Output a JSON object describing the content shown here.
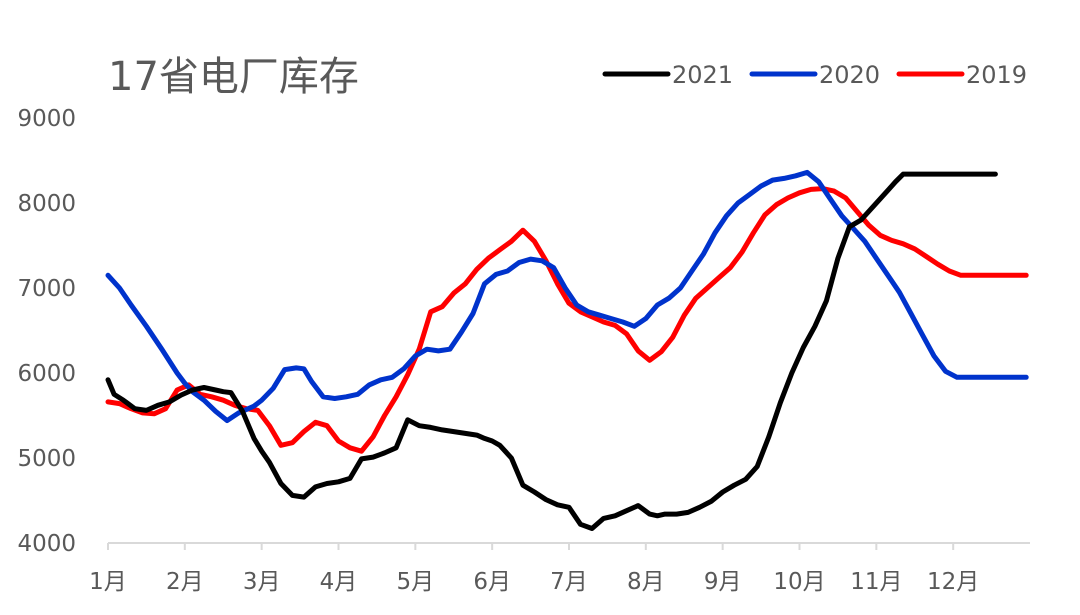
{
  "chart_data": {
    "type": "line",
    "title": "17省电厂库存",
    "xlabel": "",
    "ylabel": "",
    "ylim": [
      4000,
      9000
    ],
    "xlim": [
      0,
      12
    ],
    "y_ticks": [
      "9000",
      "8000",
      "7000",
      "6000",
      "5000",
      "4000"
    ],
    "y_tick_values": [
      9000,
      8000,
      7000,
      6000,
      5000,
      4000
    ],
    "x_ticks": [
      "1月",
      "2月",
      "3月",
      "4月",
      "5月",
      "6月",
      "7月",
      "8月",
      "9月",
      "10月",
      "11月",
      "12月"
    ],
    "legend_position": "top-right",
    "grid": false,
    "series": [
      {
        "name": "2021",
        "color": "#000000",
        "x": [
          0.0,
          0.08,
          0.2,
          0.35,
          0.5,
          0.65,
          0.8,
          0.95,
          1.1,
          1.25,
          1.4,
          1.5,
          1.6,
          1.75,
          1.9,
          2.0,
          2.1,
          2.25,
          2.4,
          2.55,
          2.7,
          2.85,
          3.0,
          3.15,
          3.3,
          3.45,
          3.6,
          3.75,
          3.9,
          4.05,
          4.2,
          4.35,
          4.5,
          4.65,
          4.8,
          4.9,
          5.0,
          5.1,
          5.25,
          5.4,
          5.55,
          5.7,
          5.85,
          6.0,
          6.15,
          6.3,
          6.45,
          6.6,
          6.75,
          6.9,
          7.05,
          7.15,
          7.25,
          7.4,
          7.55,
          7.7,
          7.85,
          8.0,
          8.15,
          8.3,
          8.45,
          8.6,
          8.75,
          8.9,
          9.05,
          9.2,
          9.35,
          9.5,
          9.65,
          9.8,
          9.95,
          10.05,
          10.15,
          10.25,
          10.35,
          10.45,
          10.55,
          10.65,
          10.75,
          10.85,
          10.95,
          11.05,
          11.15,
          11.25,
          11.35,
          11.45,
          11.55
        ],
        "values": [
          5920,
          5750,
          5680,
          5580,
          5560,
          5620,
          5660,
          5740,
          5800,
          5830,
          5800,
          5780,
          5770,
          5550,
          5230,
          5080,
          4950,
          4700,
          4560,
          4540,
          4660,
          4700,
          4720,
          4760,
          4990,
          5010,
          5060,
          5120,
          5450,
          5380,
          5360,
          5330,
          5310,
          5290,
          5270,
          5230,
          5200,
          5150,
          5000,
          4680,
          4600,
          4510,
          4450,
          4420,
          4220,
          4170,
          4290,
          4320,
          4380,
          4440,
          4340,
          4320,
          4340,
          4340,
          4360,
          4420,
          4490,
          4600,
          4680,
          4750,
          4900,
          5250,
          5650,
          6000,
          6300,
          6550,
          6850,
          7350,
          7720,
          7800,
          7950,
          8050,
          8150,
          8250,
          8340,
          8340,
          8340,
          8340,
          8340,
          8340,
          8340,
          8340,
          8340,
          8340,
          8340,
          8340,
          8340
        ]
      },
      {
        "name": "2020",
        "color": "#0033CC",
        "x": [
          0.0,
          0.15,
          0.3,
          0.5,
          0.7,
          0.9,
          1.0,
          1.1,
          1.25,
          1.4,
          1.55,
          1.7,
          1.8,
          1.9,
          2.0,
          2.15,
          2.3,
          2.45,
          2.55,
          2.65,
          2.8,
          2.95,
          3.1,
          3.25,
          3.4,
          3.55,
          3.7,
          3.85,
          4.0,
          4.15,
          4.3,
          4.45,
          4.6,
          4.75,
          4.9,
          5.05,
          5.2,
          5.35,
          5.5,
          5.65,
          5.8,
          5.95,
          6.1,
          6.25,
          6.4,
          6.55,
          6.7,
          6.85,
          7.0,
          7.15,
          7.3,
          7.45,
          7.6,
          7.75,
          7.9,
          8.05,
          8.2,
          8.35,
          8.5,
          8.65,
          8.8,
          8.95,
          9.1,
          9.25,
          9.4,
          9.55,
          9.7,
          9.85,
          10.0,
          10.15,
          10.3,
          10.45,
          10.6,
          10.75,
          10.9,
          11.05,
          11.2,
          11.35,
          11.5,
          11.65,
          11.8,
          11.95
        ],
        "values": [
          7150,
          7000,
          6800,
          6550,
          6280,
          6000,
          5880,
          5780,
          5680,
          5550,
          5440,
          5530,
          5570,
          5610,
          5680,
          5820,
          6040,
          6060,
          6050,
          5900,
          5720,
          5700,
          5720,
          5750,
          5860,
          5920,
          5950,
          6050,
          6200,
          6280,
          6260,
          6280,
          6480,
          6700,
          7050,
          7160,
          7200,
          7300,
          7340,
          7320,
          7240,
          7000,
          6800,
          6720,
          6680,
          6640,
          6600,
          6550,
          6640,
          6800,
          6880,
          7000,
          7200,
          7400,
          7650,
          7850,
          8000,
          8100,
          8200,
          8270,
          8290,
          8320,
          8360,
          8250,
          8050,
          7850,
          7700,
          7550,
          7350,
          7150,
          6950,
          6700,
          6450,
          6200,
          6020,
          5950,
          5950,
          5950,
          5950,
          5950,
          5950,
          5950
        ]
      },
      {
        "name": "2019",
        "color": "#FF0000",
        "x": [
          0.0,
          0.15,
          0.3,
          0.45,
          0.6,
          0.75,
          0.9,
          1.05,
          1.2,
          1.35,
          1.5,
          1.65,
          1.8,
          1.95,
          2.1,
          2.25,
          2.4,
          2.55,
          2.7,
          2.85,
          3.0,
          3.15,
          3.3,
          3.45,
          3.6,
          3.75,
          3.9,
          4.05,
          4.2,
          4.35,
          4.5,
          4.65,
          4.8,
          4.95,
          5.1,
          5.25,
          5.4,
          5.55,
          5.7,
          5.85,
          6.0,
          6.15,
          6.3,
          6.45,
          6.6,
          6.75,
          6.9,
          7.05,
          7.2,
          7.35,
          7.5,
          7.65,
          7.8,
          7.95,
          8.1,
          8.25,
          8.4,
          8.55,
          8.7,
          8.85,
          9.0,
          9.15,
          9.3,
          9.45,
          9.6,
          9.75,
          9.9,
          10.05,
          10.2,
          10.35,
          10.5,
          10.65,
          10.8,
          10.95,
          11.1,
          11.25,
          11.4,
          11.55,
          11.7,
          11.85,
          11.95
        ],
        "values": [
          5660,
          5640,
          5580,
          5530,
          5520,
          5580,
          5800,
          5860,
          5750,
          5720,
          5680,
          5620,
          5580,
          5560,
          5380,
          5150,
          5180,
          5310,
          5420,
          5380,
          5200,
          5120,
          5080,
          5250,
          5500,
          5720,
          5980,
          6280,
          6720,
          6780,
          6940,
          7050,
          7220,
          7350,
          7450,
          7550,
          7680,
          7550,
          7320,
          7050,
          6820,
          6720,
          6660,
          6600,
          6560,
          6460,
          6260,
          6150,
          6250,
          6420,
          6680,
          6880,
          7000,
          7120,
          7240,
          7420,
          7650,
          7860,
          7980,
          8060,
          8120,
          8160,
          8170,
          8140,
          8060,
          7900,
          7740,
          7620,
          7560,
          7520,
          7460,
          7370,
          7280,
          7200,
          7150,
          7150,
          7150,
          7150,
          7150,
          7150,
          7150
        ]
      }
    ]
  }
}
